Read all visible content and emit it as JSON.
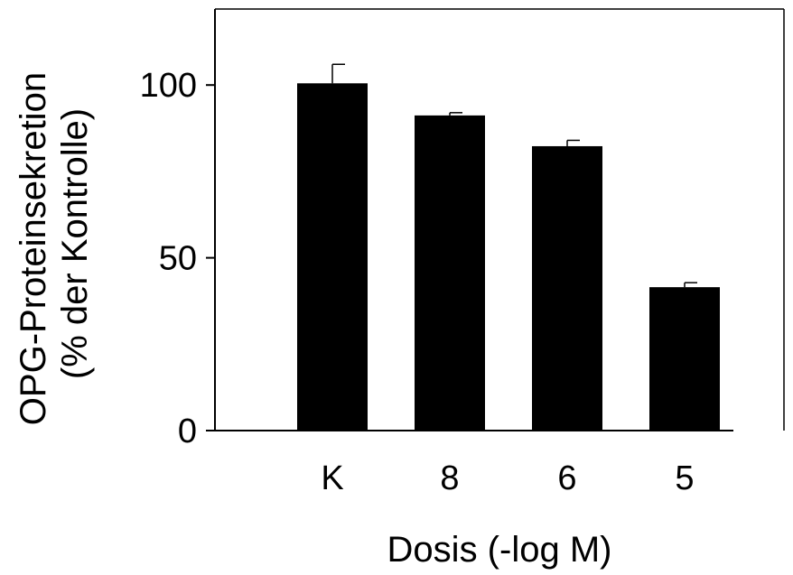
{
  "chart_data": {
    "type": "bar",
    "categories": [
      "K",
      "8",
      "6",
      "5"
    ],
    "values": [
      100.5,
      91.2,
      82.3,
      41.5
    ],
    "errors": [
      5.5,
      0.8,
      1.7,
      1.3
    ],
    "xlabel": "Dosis (-log M)",
    "ylabel": [
      "OPG-Proteinsekretion",
      "(% der Kontrolle)"
    ],
    "ylim": [
      0,
      122
    ],
    "yticks": [
      0,
      50,
      100
    ],
    "grid": false,
    "bar_color": "#000000"
  }
}
